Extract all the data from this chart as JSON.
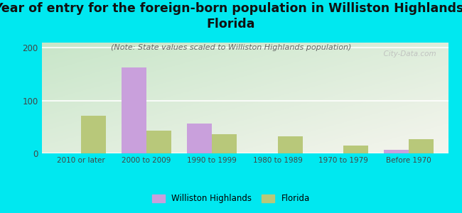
{
  "title": "Year of entry for the foreign-born population in Williston Highlands,\nFlorida",
  "subtitle": "(Note: State values scaled to Williston Highlands population)",
  "categories": [
    "2010 or later",
    "2000 to 2009",
    "1990 to 1999",
    "1980 to 1989",
    "1970 to 1979",
    "Before 1970"
  ],
  "williston_values": [
    0,
    163,
    57,
    0,
    0,
    7
  ],
  "florida_values": [
    72,
    43,
    37,
    32,
    15,
    27
  ],
  "williston_color": "#c9a0dc",
  "florida_color": "#b8c87a",
  "background_outer": "#00e8f0",
  "background_inner_topleft": "#c8e6c9",
  "background_inner_bottomright": "#f5f5ee",
  "ylim": [
    0,
    210
  ],
  "yticks": [
    0,
    100,
    200
  ],
  "bar_width": 0.38,
  "watermark": "  City-Data.com",
  "legend_labels": [
    "Williston Highlands",
    "Florida"
  ],
  "title_fontsize": 12.5,
  "subtitle_fontsize": 8
}
